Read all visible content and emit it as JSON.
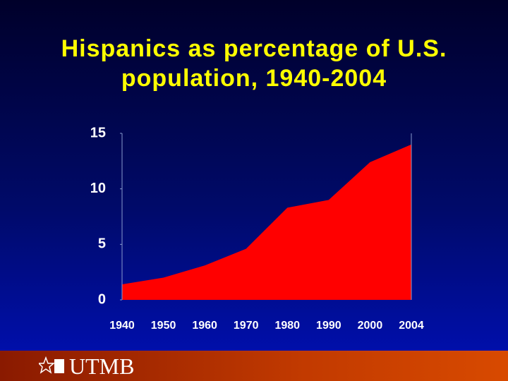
{
  "chart_data": {
    "type": "area",
    "title": "Hispanics as percentage of U.S. population, 1940-2004",
    "categories": [
      "1940",
      "1950",
      "1960",
      "1970",
      "1980",
      "1990",
      "2000",
      "2004"
    ],
    "values": [
      1.4,
      2.0,
      3.1,
      4.6,
      8.3,
      9.0,
      12.4,
      14.0
    ],
    "color": "#ff0000",
    "ylim": [
      0,
      15
    ],
    "yticks": [
      0,
      5,
      10,
      15
    ]
  },
  "footer": {
    "logo": "UTMB"
  }
}
